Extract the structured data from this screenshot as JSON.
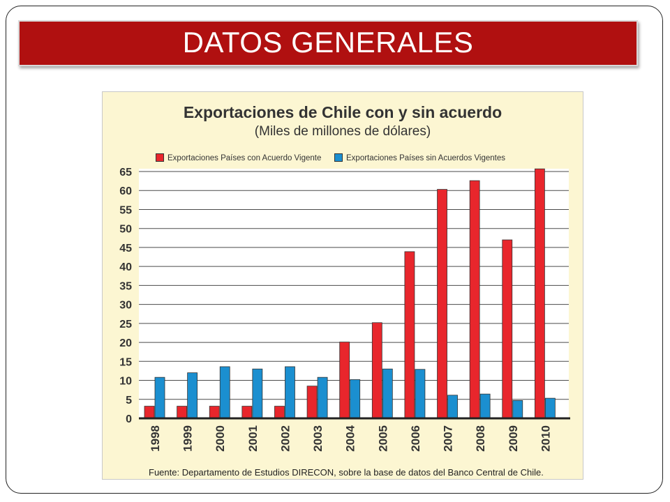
{
  "slide": {
    "title": "DATOS GENERALES"
  },
  "colors": {
    "banner": "#b01010",
    "series_con": "#e8262c",
    "series_sin": "#1b8fd0",
    "chart_background": "#fcf6d2"
  },
  "chart_data": {
    "type": "bar",
    "title": "Exportaciones de Chile con y sin acuerdo",
    "subtitle": "(Miles de millones de dólares)",
    "source": "Fuente: Departamento de Estudios DIRECON, sobre la base de datos del Banco Central de Chile.",
    "categories": [
      "1998",
      "1999",
      "2000",
      "2001",
      "2002",
      "2003",
      "2004",
      "2005",
      "2006",
      "2007",
      "2008",
      "2009",
      "2010"
    ],
    "series": [
      {
        "name": "Exportaciones Países con Acuerdo Vigente",
        "color": "#e8262c",
        "values": [
          3.2,
          3.2,
          3.2,
          3.2,
          3.2,
          8.5,
          20.1,
          25.2,
          43.9,
          60.3,
          62.6,
          47.0,
          65.7
        ]
      },
      {
        "name": "Exportaciones Países sin Acuerdos Vigentes",
        "color": "#1b8fd0",
        "values": [
          10.8,
          12.0,
          13.6,
          13.0,
          13.6,
          10.8,
          10.2,
          13.0,
          12.9,
          6.1,
          6.4,
          4.7,
          5.3
        ]
      }
    ],
    "yticks": [
      0,
      5,
      10,
      15,
      20,
      25,
      30,
      35,
      40,
      45,
      50,
      55,
      60,
      65
    ],
    "ylim": [
      0,
      65
    ],
    "grid": true,
    "legend_position": "top"
  }
}
